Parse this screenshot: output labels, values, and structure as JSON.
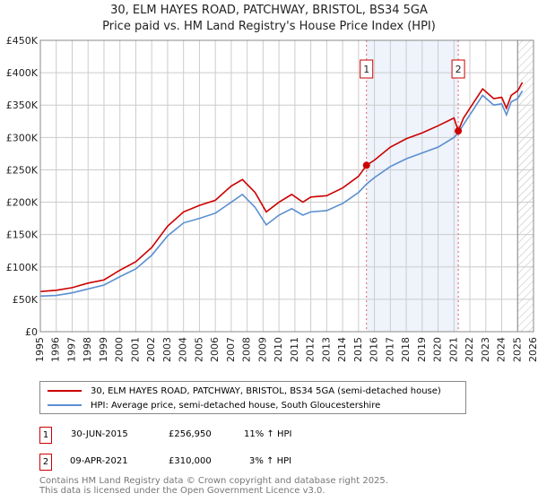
{
  "chart_data": {
    "type": "line",
    "title": "30, ELM HAYES ROAD, PATCHWAY, BRISTOL, BS34 5GA",
    "subtitle": "Price paid vs. HM Land Registry's House Price Index (HPI)",
    "xlim": [
      1995,
      2026
    ],
    "ylim": [
      0,
      450000
    ],
    "x_ticks": [
      "1995",
      "1996",
      "1997",
      "1998",
      "1999",
      "2000",
      "2001",
      "2002",
      "2003",
      "2004",
      "2005",
      "2006",
      "2007",
      "2008",
      "2009",
      "2010",
      "2011",
      "2012",
      "2013",
      "2014",
      "2015",
      "2016",
      "2017",
      "2018",
      "2019",
      "2020",
      "2021",
      "2022",
      "2023",
      "2024",
      "2025",
      "2026"
    ],
    "y_ticks": [
      {
        "v": 0,
        "l": "£0"
      },
      {
        "v": 50000,
        "l": "£50K"
      },
      {
        "v": 100000,
        "l": "£100K"
      },
      {
        "v": 150000,
        "l": "£150K"
      },
      {
        "v": 200000,
        "l": "£200K"
      },
      {
        "v": 250000,
        "l": "£250K"
      },
      {
        "v": 300000,
        "l": "£300K"
      },
      {
        "v": 350000,
        "l": "£350K"
      },
      {
        "v": 400000,
        "l": "£400K"
      },
      {
        "v": 450000,
        "l": "£450K"
      }
    ],
    "grid": true,
    "series": [
      {
        "name": "30, ELM HAYES ROAD, PATCHWAY, BRISTOL, BS34 5GA (semi-detached house)",
        "color": "#cc0000",
        "x": [
          1995,
          1996,
          1997,
          1998,
          1999,
          2000,
          2001,
          2002,
          2003,
          2004,
          2005,
          2006,
          2007,
          2007.7,
          2008.5,
          2009.2,
          2010,
          2010.8,
          2011.5,
          2012,
          2013,
          2014,
          2015,
          2015.5,
          2016,
          2017,
          2018,
          2019,
          2020,
          2021,
          2021.27,
          2021.6,
          2022,
          2022.8,
          2023.5,
          2024,
          2024.3,
          2024.6,
          2025,
          2025.3
        ],
        "y": [
          62000,
          64000,
          68000,
          75000,
          80000,
          95000,
          108000,
          130000,
          163000,
          185000,
          195000,
          203000,
          225000,
          235000,
          215000,
          185000,
          200000,
          212000,
          200000,
          208000,
          210000,
          222000,
          240000,
          256950,
          265000,
          285000,
          298000,
          307000,
          318000,
          330000,
          310000,
          330000,
          345000,
          375000,
          360000,
          362000,
          345000,
          365000,
          372000,
          385000
        ]
      },
      {
        "name": "HPI: Average price, semi-detached house, South Gloucestershire",
        "color": "#5b8fd0",
        "x": [
          1995,
          1996,
          1997,
          1998,
          1999,
          2000,
          2001,
          2002,
          2003,
          2004,
          2005,
          2006,
          2007,
          2007.7,
          2008.5,
          2009.2,
          2010,
          2010.8,
          2011.5,
          2012,
          2013,
          2014,
          2015,
          2015.5,
          2016,
          2017,
          2018,
          2019,
          2020,
          2021,
          2021.3,
          2021.6,
          2022,
          2022.8,
          2023.5,
          2024,
          2024.3,
          2024.6,
          2025,
          2025.3
        ],
        "y": [
          55000,
          56000,
          60000,
          66000,
          72000,
          85000,
          97000,
          118000,
          148000,
          168000,
          175000,
          183000,
          200000,
          212000,
          192000,
          165000,
          180000,
          190000,
          180000,
          185000,
          187000,
          198000,
          215000,
          228000,
          238000,
          255000,
          267000,
          276000,
          285000,
          300000,
          308000,
          320000,
          335000,
          365000,
          350000,
          352000,
          335000,
          355000,
          360000,
          372000
        ]
      }
    ],
    "sales": [
      {
        "id": "1",
        "x": 2015.5,
        "y": 256950
      },
      {
        "id": "2",
        "x": 2021.27,
        "y": 310000
      }
    ],
    "shade": [
      2015.5,
      2021.27
    ],
    "hatch_from": 2025.0
  },
  "legend": [
    "30, ELM HAYES ROAD, PATCHWAY, BRISTOL, BS34 5GA (semi-detached house)",
    "HPI: Average price, semi-detached house, South Gloucestershire"
  ],
  "transactions": [
    {
      "id": "1",
      "date": "30-JUN-2015",
      "price": "£256,950",
      "hpi": "11% ↑ HPI"
    },
    {
      "id": "2",
      "date": "09-APR-2021",
      "price": "£310,000",
      "hpi": "3% ↑ HPI"
    }
  ],
  "footer": [
    "Contains HM Land Registry data © Crown copyright and database right 2025.",
    "This data is licensed under the Open Government Licence v3.0."
  ]
}
